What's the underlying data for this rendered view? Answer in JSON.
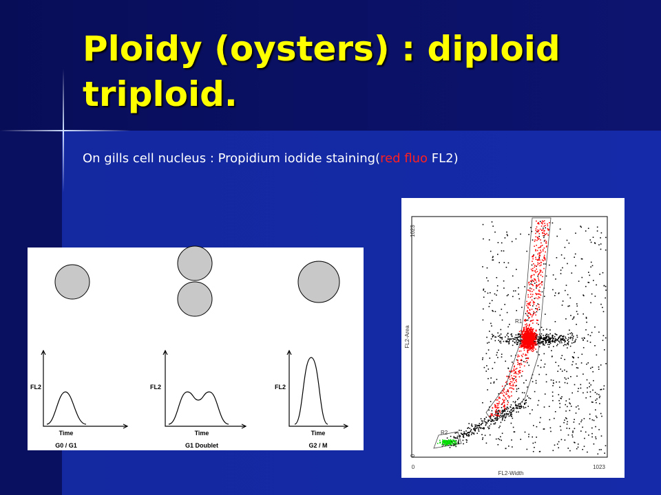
{
  "title": "Ploidy (oysters) : diploid triploid.",
  "subtitle": {
    "lead": "On gills cell nucleus : Propidium iodide staining(",
    "highlight": "red fluo",
    "tail": " FL2)"
  },
  "cell_cycle_figure": {
    "y_axis_label": "FL2",
    "x_axis_label": "Time",
    "panels": [
      {
        "label": "G0 / G1"
      },
      {
        "label": "G1 Doublet"
      },
      {
        "label": "G2 / M"
      }
    ]
  },
  "flow_cytometry_plot": {
    "y_axis_label": "FL2-Area",
    "x_axis_label": "FL2-Width",
    "y_min": 0,
    "y_max": 1023,
    "x_min": 0,
    "x_max": 1023,
    "gates": [
      "R1",
      "R2"
    ]
  }
}
